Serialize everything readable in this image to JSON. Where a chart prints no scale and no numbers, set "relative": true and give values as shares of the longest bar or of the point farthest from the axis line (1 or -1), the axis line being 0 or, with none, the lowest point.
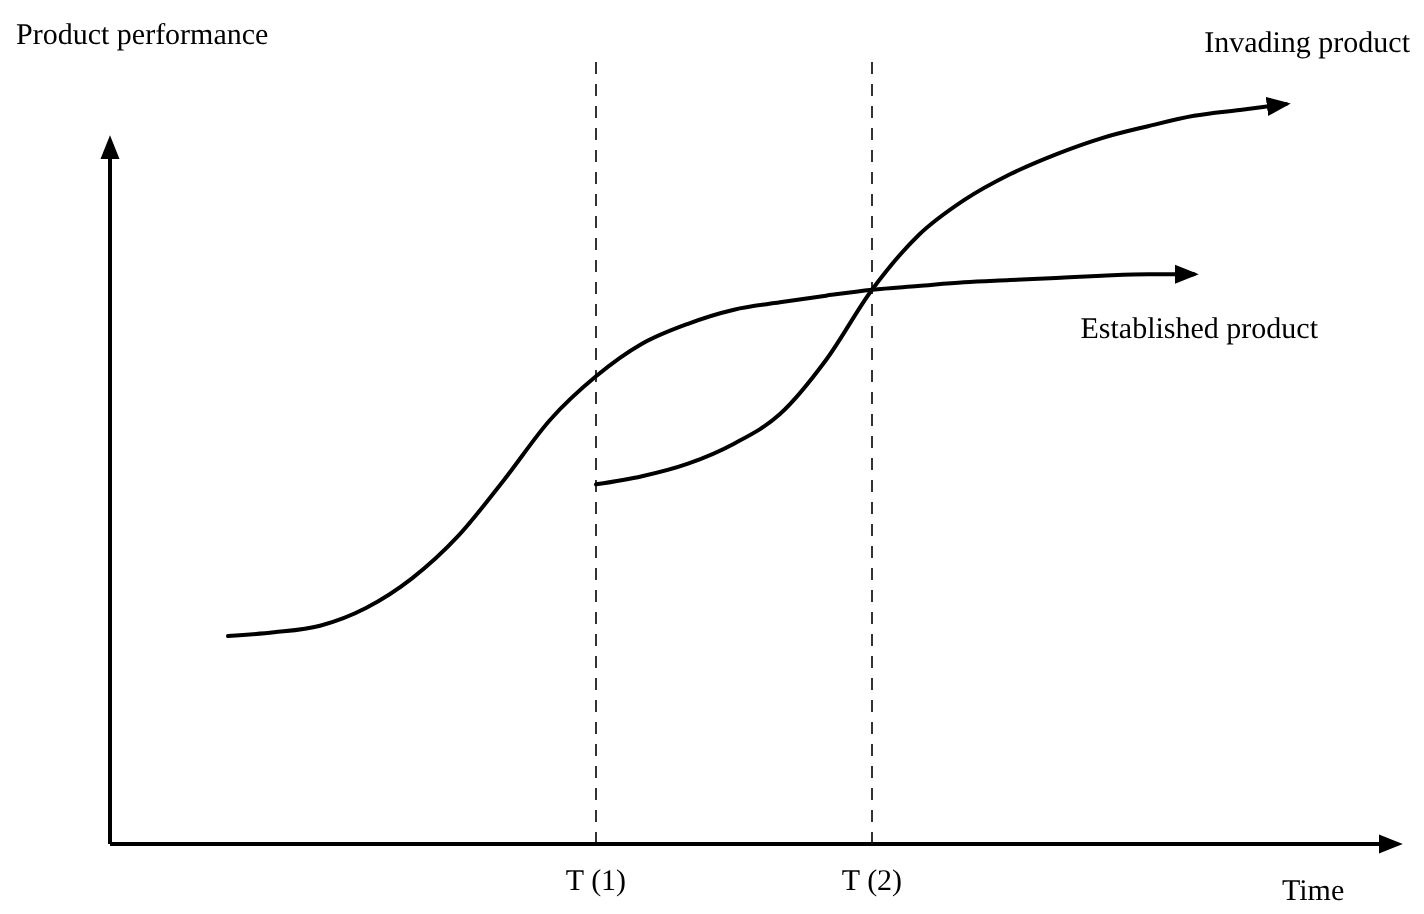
{
  "chart_data": {
    "type": "line",
    "relative": true,
    "xlabel": "Time",
    "ylabel": "Product performance",
    "categories": [
      null,
      null,
      null,
      null,
      null,
      null,
      null,
      null,
      "T (1)",
      null,
      null,
      null,
      null,
      null,
      "T (2)",
      null,
      null,
      null,
      null,
      null,
      null,
      null,
      null,
      null,
      null,
      null
    ],
    "series": [
      {
        "name": "Established product",
        "color": "#000000",
        "values": [
          0.281,
          0.286,
          0.295,
          0.319,
          0.359,
          0.416,
          0.492,
          0.573,
          0.632,
          0.676,
          0.703,
          0.722,
          0.732,
          0.741,
          0.749,
          0.754,
          0.759,
          0.762,
          0.765,
          0.768,
          0.77,
          0.77,
          null,
          null,
          null,
          null
        ]
      },
      {
        "name": "Invading product",
        "color": "#000000",
        "values": [
          null,
          null,
          null,
          null,
          null,
          null,
          null,
          null,
          0.486,
          0.497,
          0.514,
          0.541,
          0.581,
          0.654,
          0.749,
          0.822,
          0.87,
          0.905,
          0.932,
          0.954,
          0.97,
          0.984,
          0.992,
          1,
          null,
          null
        ]
      }
    ],
    "ref_lines": [
      {
        "axis": "x",
        "value": "T (1)",
        "line_style": "dashed"
      },
      {
        "axis": "x",
        "value": "T (2)",
        "line_style": "dashed"
      }
    ],
    "line_style": "solid"
  }
}
